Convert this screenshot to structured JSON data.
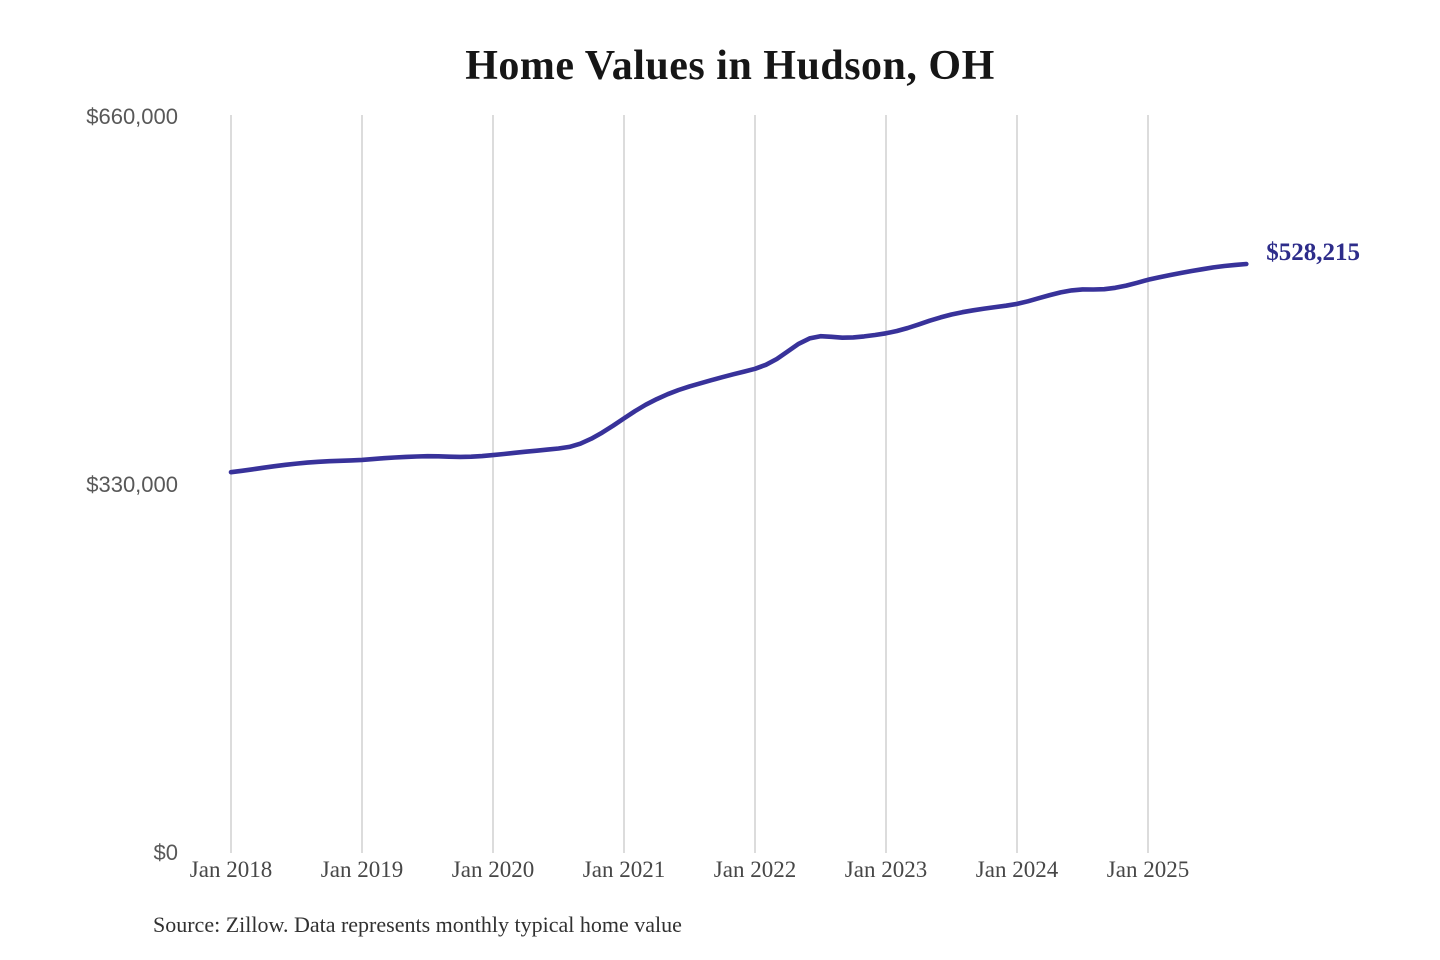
{
  "title": "Home Values in Hudson, OH",
  "source_note": "Source: Zillow. Data represents monthly typical home value",
  "chart_data": {
    "type": "line",
    "title": "Home Values in Hudson, OH",
    "series_name": "Typical home value",
    "unit": "USD",
    "frequency": "monthly",
    "start_month": "Jan 2018",
    "end_month": "Oct 2025",
    "ylim": [
      0,
      660000
    ],
    "grid": "vertical-only",
    "line_color": "#38329a",
    "gridline_color": "#c9c9c9",
    "end_label": "$528,215",
    "end_label_color": "#2d2c8a",
    "last_value": 528215,
    "y_ticks": [
      {
        "label": "$0",
        "value": 0
      },
      {
        "label": "$330,000",
        "value": 330000
      },
      {
        "label": "$660,000",
        "value": 660000
      }
    ],
    "x_ticks": [
      {
        "label": "Jan 2018",
        "month_index": 0
      },
      {
        "label": "Jan 2019",
        "month_index": 12
      },
      {
        "label": "Jan 2020",
        "month_index": 24
      },
      {
        "label": "Jan 2021",
        "month_index": 36
      },
      {
        "label": "Jan 2022",
        "month_index": 48
      },
      {
        "label": "Jan 2023",
        "month_index": 60
      },
      {
        "label": "Jan 2024",
        "month_index": 72
      },
      {
        "label": "Jan 2025",
        "month_index": 84
      }
    ],
    "values": [
      341500,
      342700,
      344100,
      345500,
      346900,
      348100,
      349200,
      350100,
      350800,
      351300,
      351700,
      352100,
      352500,
      353200,
      354000,
      354700,
      355200,
      355600,
      355800,
      355700,
      355400,
      355200,
      355400,
      355900,
      356800,
      357800,
      358900,
      359900,
      360800,
      361700,
      362700,
      364200,
      367000,
      371500,
      377000,
      383200,
      389700,
      396200,
      402000,
      407000,
      411400,
      415200,
      418400,
      421200,
      424000,
      426700,
      429300,
      431700,
      434200,
      437800,
      443000,
      449800,
      456600,
      461500,
      463400,
      462900,
      462100,
      462400,
      463300,
      464500,
      466000,
      468100,
      470800,
      474000,
      477300,
      480300,
      482900,
      485000,
      486700,
      488200,
      489500,
      490800,
      492400,
      494700,
      497500,
      500300,
      502700,
      504500,
      505400,
      505300,
      505600,
      506800,
      508800,
      511300,
      514000,
      516200,
      518200,
      520100,
      521900,
      523500,
      525100,
      526400,
      527400,
      528215
    ]
  }
}
